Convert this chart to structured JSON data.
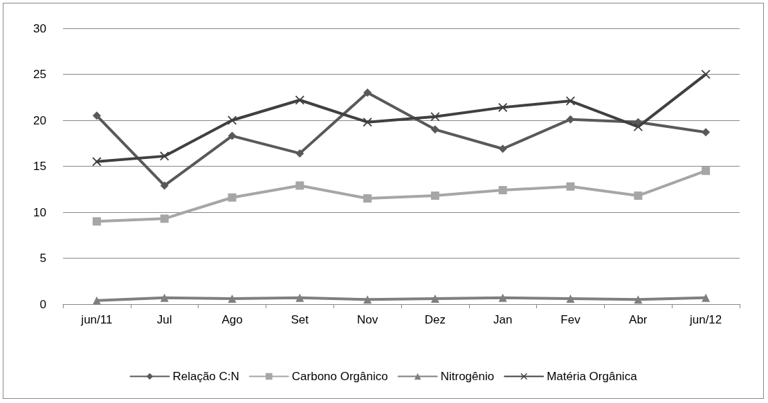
{
  "chart_data": {
    "type": "line",
    "categories": [
      "jun/11",
      "Jul",
      "Ago",
      "Set",
      "Nov",
      "Dez",
      "Jan",
      "Fev",
      "Abr",
      "jun/12"
    ],
    "series": [
      {
        "name": "Relação C:N",
        "color": "#595959",
        "marker": "diamond",
        "values": [
          20.5,
          12.9,
          18.3,
          16.4,
          23.0,
          19.0,
          16.9,
          20.1,
          19.8,
          18.7
        ]
      },
      {
        "name": "Carbono Orgânico",
        "color": "#a6a6a6",
        "marker": "square",
        "values": [
          9.0,
          9.3,
          11.6,
          12.9,
          11.5,
          11.8,
          12.4,
          12.8,
          11.8,
          14.5
        ]
      },
      {
        "name": "Nitrogênio",
        "color": "#7f7f7f",
        "marker": "triangle",
        "values": [
          0.4,
          0.7,
          0.6,
          0.7,
          0.5,
          0.6,
          0.7,
          0.6,
          0.5,
          0.7
        ]
      },
      {
        "name": "Matéria Orgânica",
        "color": "#404040",
        "marker": "cross",
        "values": [
          15.5,
          16.1,
          20.0,
          22.2,
          19.8,
          20.4,
          21.4,
          22.1,
          19.3,
          25.0
        ]
      }
    ],
    "ylim": [
      0,
      30
    ],
    "yticks": [
      0,
      5,
      10,
      15,
      20,
      25,
      30
    ],
    "grid": "y",
    "legend": "bottom",
    "line_style": "solid"
  }
}
